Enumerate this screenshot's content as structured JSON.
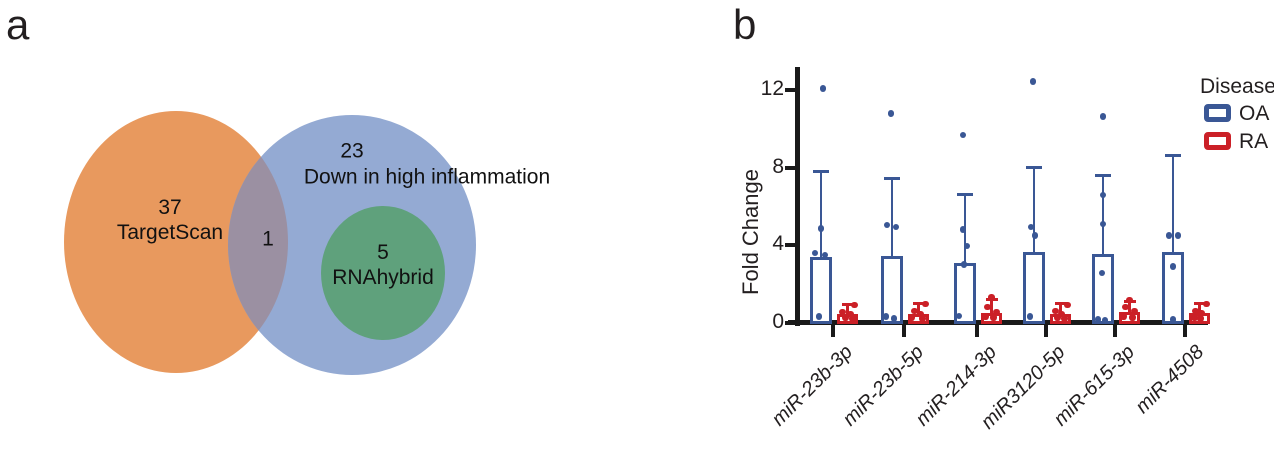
{
  "figure": {
    "panel_a_label": "a",
    "panel_b_label": "b"
  },
  "colors": {
    "venn_orange": "#E8995E",
    "venn_blue": "#94AAD3",
    "venn_green": "#5FA17C",
    "venn_overlap": "#9B90A2",
    "oa_blue": "#3A5795",
    "ra_red": "#CB2027",
    "axis_black": "#1A1A1A"
  },
  "venn": {
    "targetscan": {
      "count": "37",
      "label": "TargetScan"
    },
    "inflammation": {
      "count": "23",
      "label": "Down in high inflammation"
    },
    "overlap": {
      "count": "1"
    },
    "rnahybrid": {
      "count": "5",
      "label": "RNAhybrid"
    }
  },
  "chart_data": {
    "type": "bar",
    "title": "",
    "xlabel": "",
    "ylabel": "Fold Change",
    "ylim": [
      0,
      13
    ],
    "yticks": [
      0,
      4,
      8,
      12
    ],
    "grid": false,
    "legend_title": "Disease",
    "legend_position": "top-right",
    "bar_style": "open-outline with SD error bars and individual data points",
    "categories": [
      "miR-23b-3p",
      "miR-23b-5p",
      "miR-214-3p",
      "miR3120-5p",
      "miR-615-3p",
      "miR-4508"
    ],
    "series": [
      {
        "name": "OA",
        "color": "#3A5795",
        "means": [
          3.4,
          3.45,
          3.05,
          3.65,
          3.55,
          3.65
        ],
        "error_top": [
          7.8,
          7.45,
          6.6,
          8.0,
          7.6,
          8.65
        ],
        "points": [
          [
            {
              "v": 12.1,
              "dx": 2
            },
            {
              "v": 4.85,
              "dx": 0
            },
            {
              "v": 3.6,
              "dx": -6
            },
            {
              "v": 3.5,
              "dx": 4
            },
            {
              "v": 0.3,
              "dx": -2
            }
          ],
          [
            {
              "v": 10.8,
              "dx": -1
            },
            {
              "v": 5.05,
              "dx": -5
            },
            {
              "v": 4.95,
              "dx": 4
            },
            {
              "v": 0.3,
              "dx": -6
            },
            {
              "v": 0.2,
              "dx": 2
            }
          ],
          [
            {
              "v": 9.7,
              "dx": -2
            },
            {
              "v": 4.8,
              "dx": -2
            },
            {
              "v": 3.95,
              "dx": 2
            },
            {
              "v": 3.0,
              "dx": -1
            },
            {
              "v": 0.35,
              "dx": -6
            }
          ],
          [
            {
              "v": 12.45,
              "dx": -1
            },
            {
              "v": 4.95,
              "dx": -3
            },
            {
              "v": 4.5,
              "dx": 1
            },
            {
              "v": 0.3,
              "dx": -4
            }
          ],
          [
            {
              "v": 10.65,
              "dx": 0
            },
            {
              "v": 6.6,
              "dx": 0
            },
            {
              "v": 5.1,
              "dx": 0
            },
            {
              "v": 2.55,
              "dx": -1
            },
            {
              "v": 0.15,
              "dx": -5
            },
            {
              "v": 0.1,
              "dx": 2
            }
          ],
          [
            {
              "v": 4.5,
              "dx": -4
            },
            {
              "v": 4.5,
              "dx": 5
            },
            {
              "v": 2.9,
              "dx": 0
            },
            {
              "v": 0.15,
              "dx": 0
            }
          ]
        ]
      },
      {
        "name": "RA",
        "color": "#CB2027",
        "means": [
          0.45,
          0.45,
          0.5,
          0.45,
          0.55,
          0.48
        ],
        "error_top": [
          0.95,
          1.0,
          1.2,
          1.0,
          1.1,
          1.0
        ],
        "points": [
          [
            {
              "v": 0.9,
              "dx": 7
            },
            {
              "v": 0.55,
              "dx": -5
            },
            {
              "v": 0.45,
              "dx": 3
            },
            {
              "v": 0.25,
              "dx": -2
            },
            {
              "v": 0.2,
              "dx": 5
            }
          ],
          [
            {
              "v": 0.95,
              "dx": 7
            },
            {
              "v": 0.6,
              "dx": -4
            },
            {
              "v": 0.45,
              "dx": 2
            },
            {
              "v": 0.25,
              "dx": -7
            },
            {
              "v": 0.2,
              "dx": 4
            }
          ],
          [
            {
              "v": 1.3,
              "dx": 0
            },
            {
              "v": 0.8,
              "dx": -4
            },
            {
              "v": 0.55,
              "dx": 5
            },
            {
              "v": 0.3,
              "dx": -6
            },
            {
              "v": 0.25,
              "dx": 2
            }
          ],
          [
            {
              "v": 0.9,
              "dx": 7
            },
            {
              "v": 0.6,
              "dx": -5
            },
            {
              "v": 0.45,
              "dx": 1
            },
            {
              "v": 0.25,
              "dx": -3
            },
            {
              "v": 0.2,
              "dx": 4
            }
          ],
          [
            {
              "v": 1.15,
              "dx": 0
            },
            {
              "v": 0.8,
              "dx": -4
            },
            {
              "v": 0.6,
              "dx": 5
            },
            {
              "v": 0.3,
              "dx": -6
            },
            {
              "v": 0.25,
              "dx": 3
            }
          ],
          [
            {
              "v": 0.95,
              "dx": 7
            },
            {
              "v": 0.6,
              "dx": -4
            },
            {
              "v": 0.5,
              "dx": 2
            },
            {
              "v": 0.25,
              "dx": -5
            },
            {
              "v": 0.2,
              "dx": 1
            }
          ]
        ]
      }
    ]
  }
}
